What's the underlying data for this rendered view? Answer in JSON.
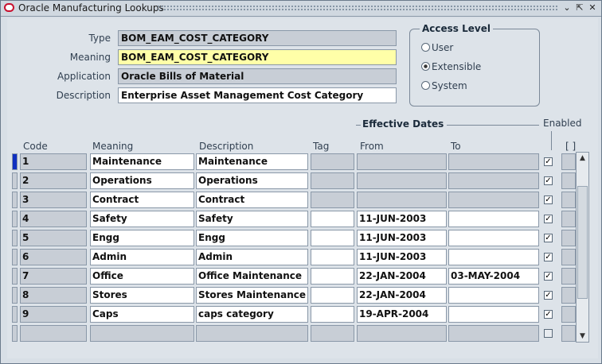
{
  "window": {
    "title": "Oracle Manufacturing Lookups",
    "minimize": "⌄",
    "maximize": "⇱",
    "close": "✕"
  },
  "header": {
    "type_label": "Type",
    "type_value": "BOM_EAM_COST_CATEGORY",
    "meaning_label": "Meaning",
    "meaning_value": "BOM_EAM_COST_CATEGORY",
    "application_label": "Application",
    "application_value": "Oracle Bills of Material",
    "description_label": "Description",
    "description_value": "Enterprise Asset Management Cost Category"
  },
  "access_level": {
    "title": "Access Level",
    "options": [
      "User",
      "Extensible",
      "System"
    ],
    "selected": "Extensible"
  },
  "table": {
    "effective_dates_title": "Effective Dates",
    "enabled_label": "Enabled",
    "flex_label": "[ ]",
    "columns": {
      "code": "Code",
      "meaning": "Meaning",
      "description": "Description",
      "tag": "Tag",
      "from": "From",
      "to": "To"
    },
    "rows": [
      {
        "code": "1",
        "meaning": "Maintenance",
        "description": "Maintenance",
        "tag": "",
        "from": "",
        "to": "",
        "enabled": true
      },
      {
        "code": "2",
        "meaning": "Operations",
        "description": "Operations",
        "tag": "",
        "from": "",
        "to": "",
        "enabled": true
      },
      {
        "code": "3",
        "meaning": "Contract",
        "description": "Contract",
        "tag": "",
        "from": "",
        "to": "",
        "enabled": true
      },
      {
        "code": "4",
        "meaning": "Safety",
        "description": "Safety",
        "tag": "",
        "from": "11-JUN-2003",
        "to": "",
        "enabled": true
      },
      {
        "code": "5",
        "meaning": "Engg",
        "description": "Engg",
        "tag": "",
        "from": "11-JUN-2003",
        "to": "",
        "enabled": true
      },
      {
        "code": "6",
        "meaning": "Admin",
        "description": "Admin",
        "tag": "",
        "from": "11-JUN-2003",
        "to": "",
        "enabled": true
      },
      {
        "code": "7",
        "meaning": "Office",
        "description": "Office Maintenance",
        "tag": "",
        "from": "22-JAN-2004",
        "to": "03-MAY-2004",
        "enabled": true
      },
      {
        "code": "8",
        "meaning": "Stores",
        "description": "Stores Maintenance",
        "tag": "",
        "from": "22-JAN-2004",
        "to": "",
        "enabled": true
      },
      {
        "code": "9",
        "meaning": "Caps",
        "description": "caps category",
        "tag": "",
        "from": "19-APR-2004",
        "to": "",
        "enabled": true
      },
      {
        "code": "",
        "meaning": "",
        "description": "",
        "tag": "",
        "from": "",
        "to": "",
        "enabled": false
      }
    ]
  }
}
